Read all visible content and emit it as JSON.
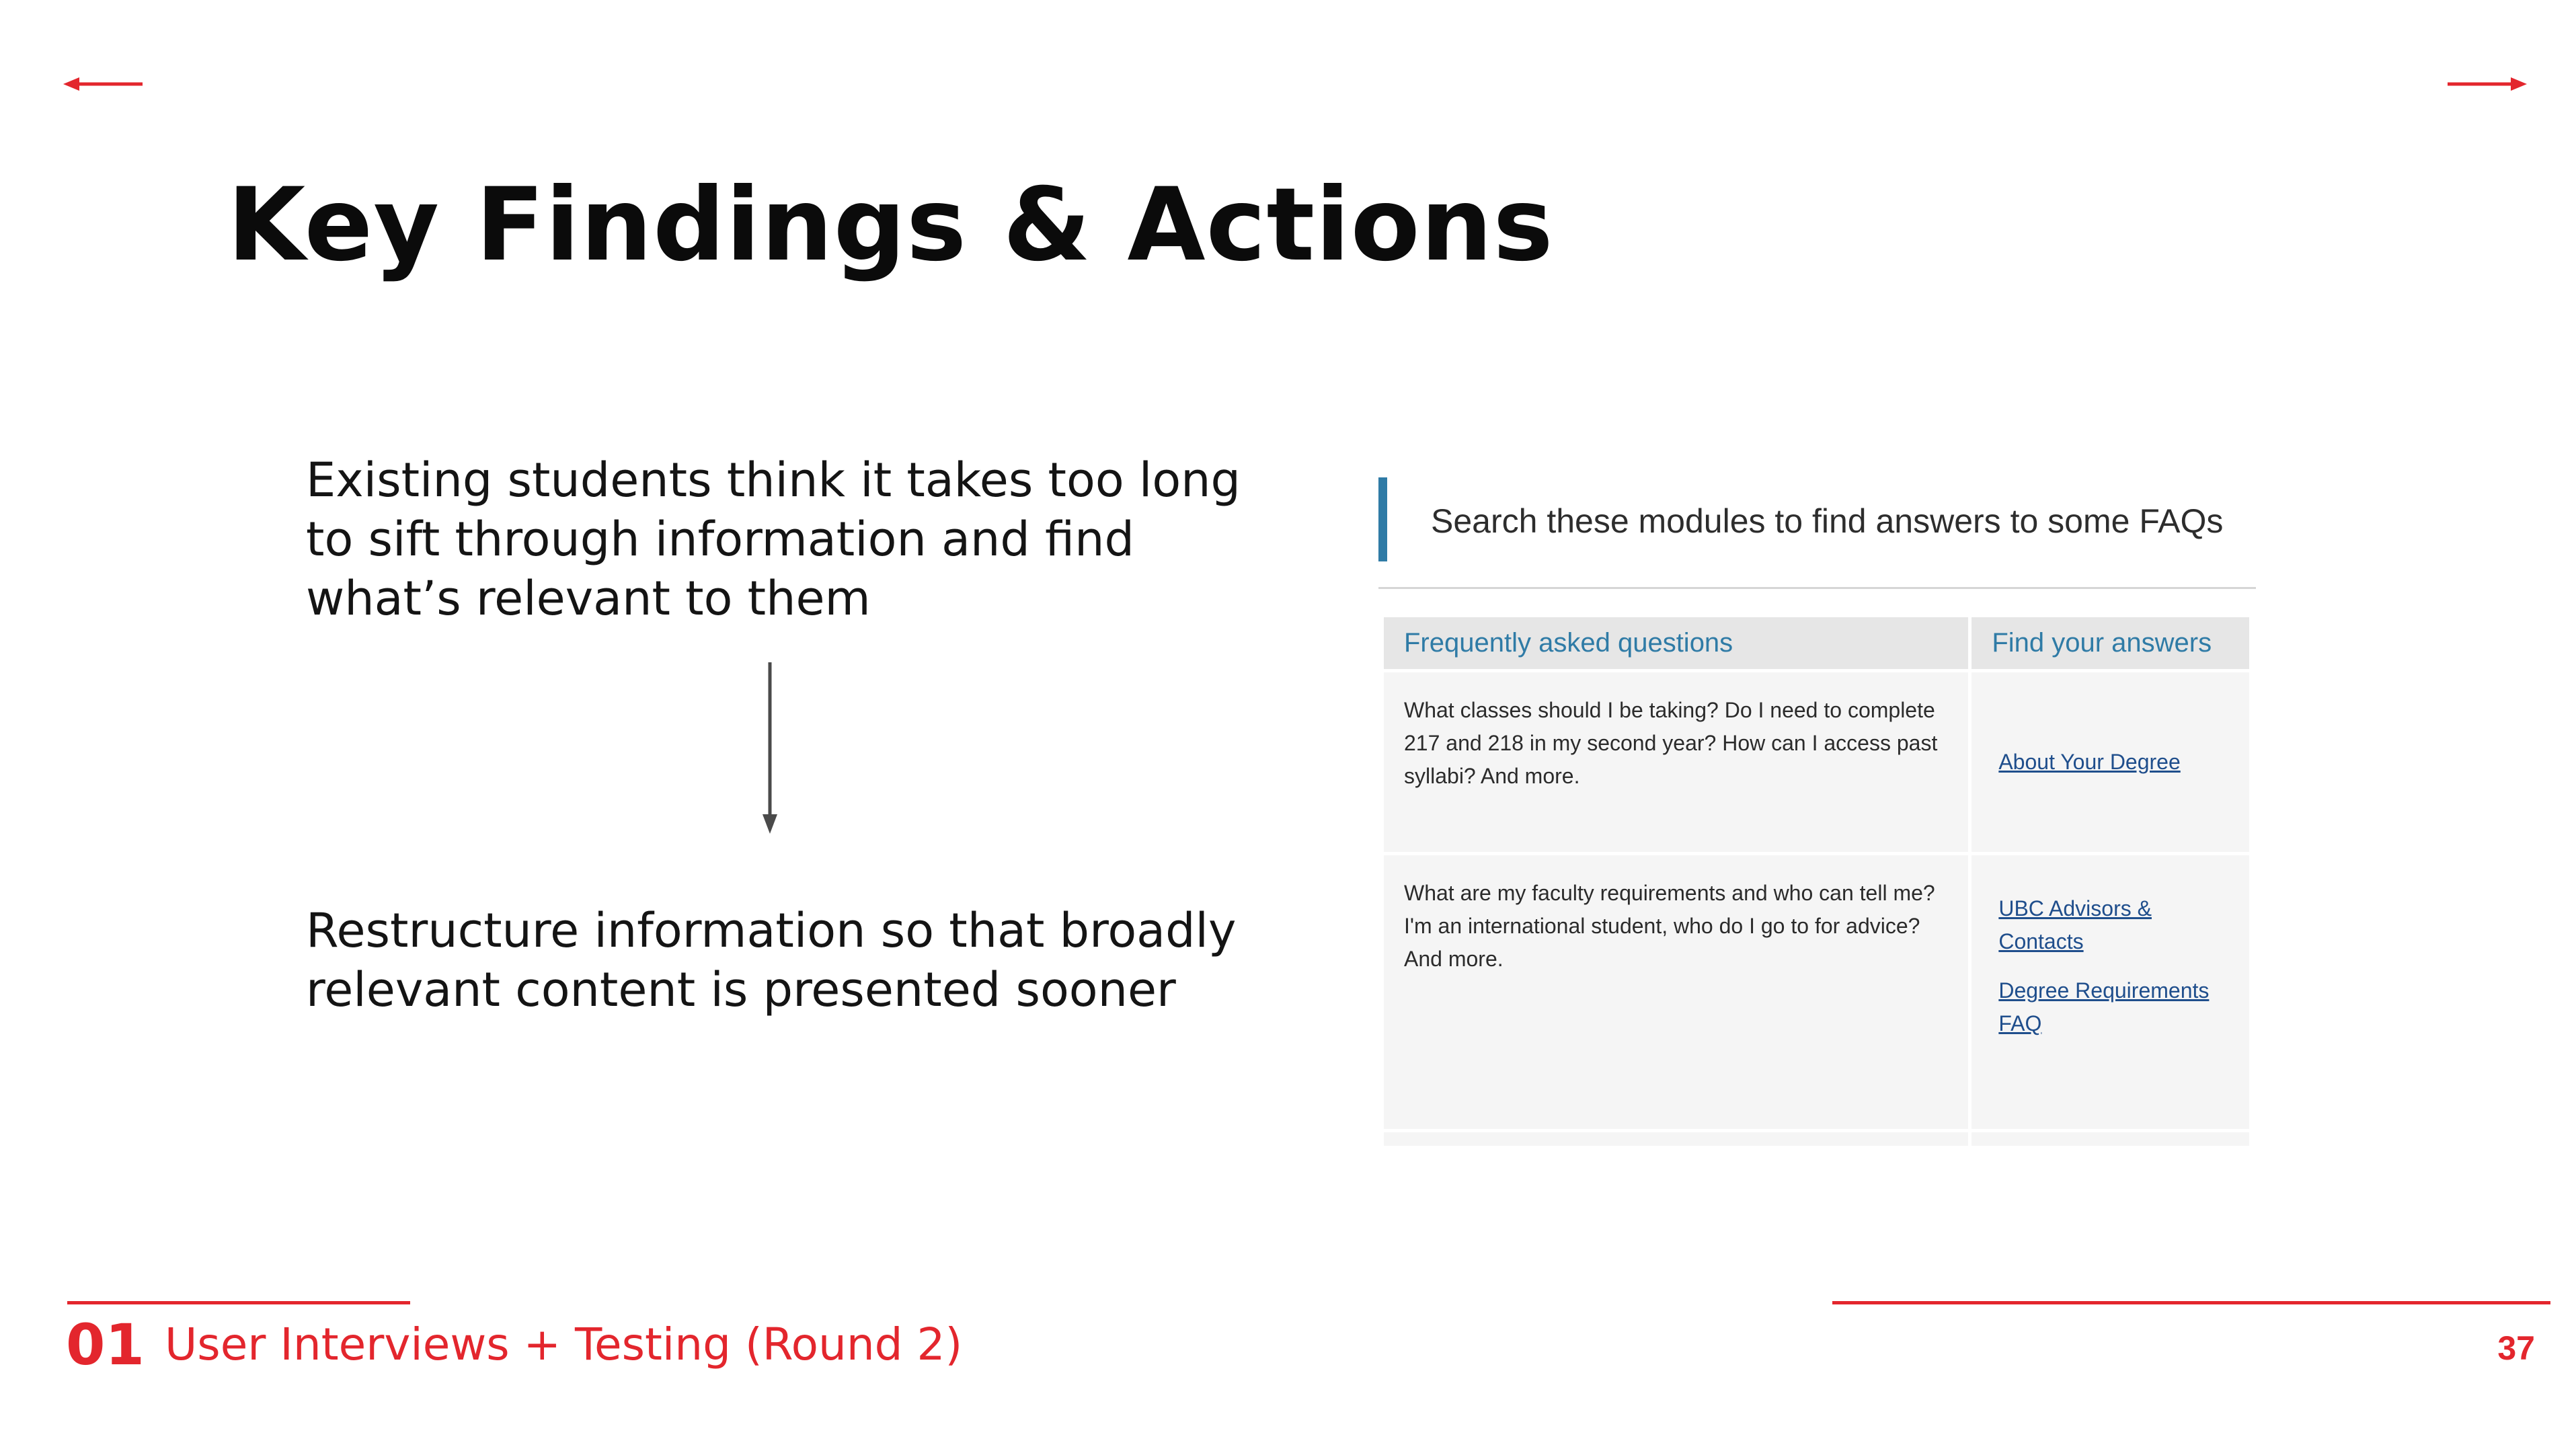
{
  "colors": {
    "accent_red": "#e3262d",
    "faq_blue": "#2f7ba6",
    "link_blue": "#1f4e8c",
    "header_gray": "#e6e6e6",
    "cell_gray": "#f5f5f5"
  },
  "nav": {
    "prev_icon": "arrow-left-icon",
    "next_icon": "arrow-right-icon"
  },
  "slide": {
    "title": "Key Findings & Actions",
    "finding": "Existing students think it takes too long to sift through information and find what’s relevant to them",
    "action": "Restructure information so that broadly relevant content is presented sooner",
    "flow_icon": "arrow-down-icon"
  },
  "faq": {
    "heading": "Search these modules to find answers to some FAQs",
    "columns": [
      "Frequently asked questions",
      "Find your answers"
    ],
    "rows": [
      {
        "question": "What classes should I be taking? Do I need to complete 217 and 218 in my second year? How can I access past syllabi? And more.",
        "links": [
          "About Your Degree"
        ]
      },
      {
        "question": "What are my faculty requirements and who can tell me? I'm an international student, who do I go to for advice? And more.",
        "links": [
          "UBC Advisors & Contacts",
          "Degree Requirements FAQ"
        ]
      }
    ]
  },
  "footer": {
    "section_number": "01",
    "section_title": "User Interviews + Testing (Round 2)",
    "page_number": "37"
  }
}
